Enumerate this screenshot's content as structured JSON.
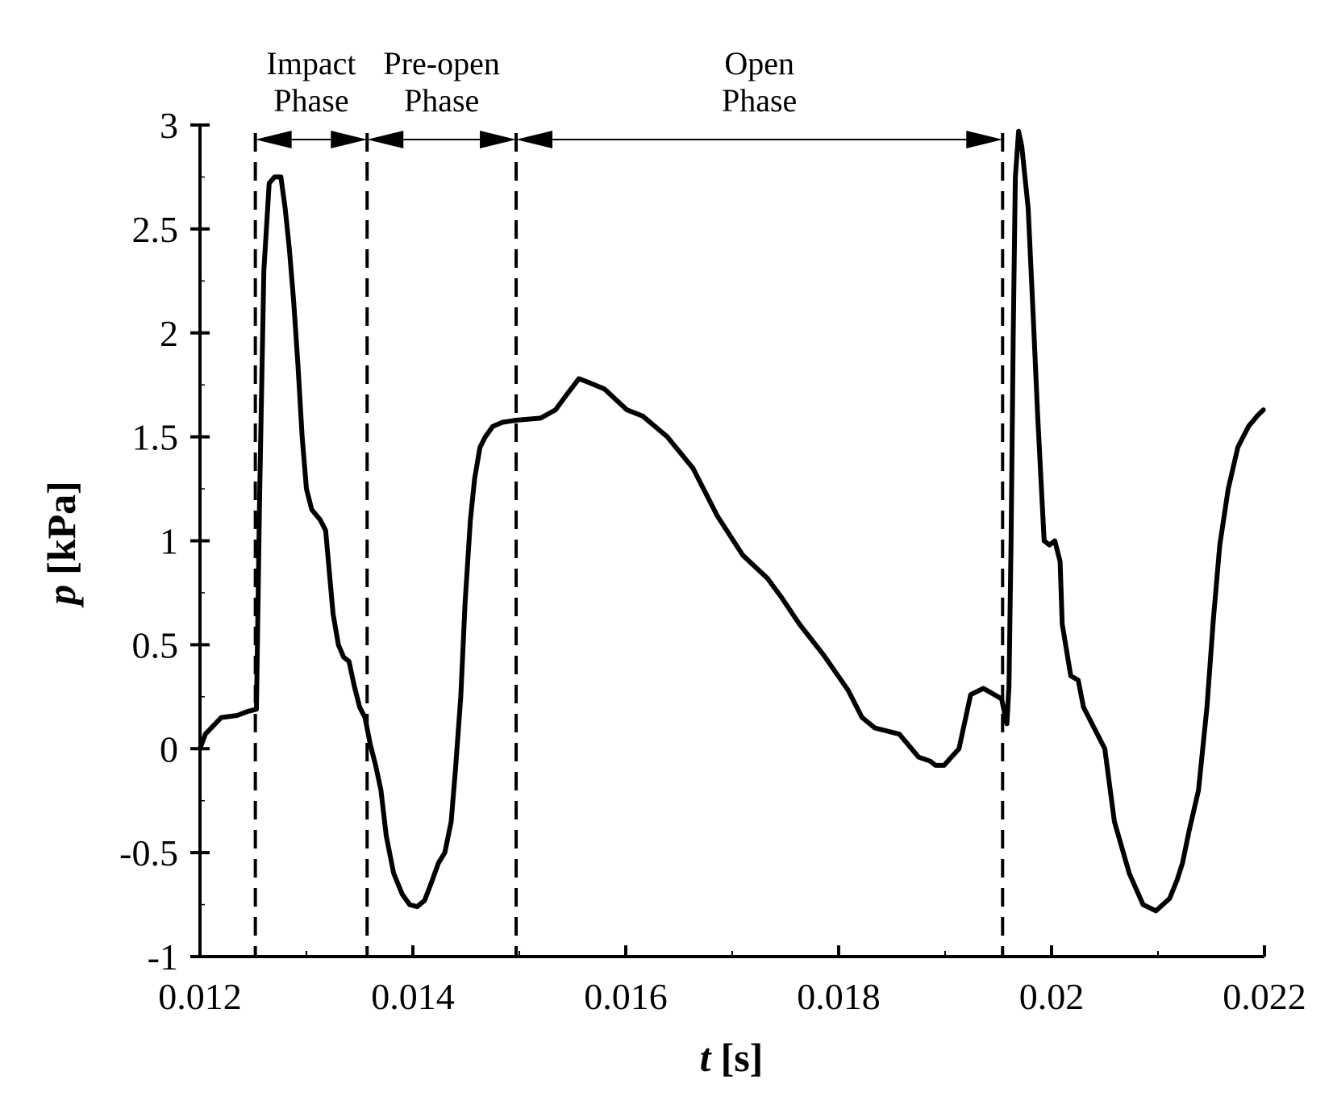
{
  "chart_data": {
    "type": "line",
    "title": "",
    "xlabel": {
      "symbol": "t",
      "unit": "[s]"
    },
    "ylabel": {
      "symbol": "p",
      "unit": "[kPa]"
    },
    "xlim": [
      0.012,
      0.022
    ],
    "ylim": [
      -1,
      3
    ],
    "x_ticks": [
      0.012,
      0.014,
      0.016,
      0.018,
      0.02,
      0.022
    ],
    "x_tick_labels": [
      "0.012",
      "0.014",
      "0.016",
      "0.018",
      "0.02",
      "0.022"
    ],
    "y_ticks": [
      -1,
      -0.5,
      0,
      0.5,
      1,
      1.5,
      2,
      2.5,
      3
    ],
    "y_tick_labels": [
      "-1",
      "-0.5",
      "0",
      "0.5",
      "1",
      "1.5",
      "2",
      "2.5",
      "3"
    ],
    "grid": false,
    "legend": "none",
    "phase_boundaries": [
      0.01252,
      0.01357,
      0.01497,
      0.01954
    ],
    "phases": [
      {
        "label_line1": "Impact",
        "label_line2": "Phase",
        "start": 0.01252,
        "end": 0.01357
      },
      {
        "label_line1": "Pre-open",
        "label_line2": "Phase",
        "start": 0.01357,
        "end": 0.01497
      },
      {
        "label_line1": "Open",
        "label_line2": "Phase",
        "start": 0.01497,
        "end": 0.01954
      }
    ],
    "series": [
      {
        "x": [
          0.012,
          0.01205,
          0.0122,
          0.01235,
          0.01245,
          0.01253,
          0.01256,
          0.0126,
          0.01265,
          0.0127,
          0.01273,
          0.01276,
          0.0128,
          0.01284,
          0.01288,
          0.01292,
          0.01296,
          0.013,
          0.01305,
          0.01313,
          0.01318,
          0.01325,
          0.0133,
          0.01335,
          0.0134,
          0.01345,
          0.0135,
          0.01355,
          0.0136,
          0.01365,
          0.0137,
          0.01375,
          0.01382,
          0.0139,
          0.01397,
          0.01404,
          0.01411,
          0.01417,
          0.01424,
          0.0143,
          0.01436,
          0.0144,
          0.01445,
          0.01449,
          0.01454,
          0.01458,
          0.01463,
          0.01468,
          0.01475,
          0.01484,
          0.01497,
          0.0152,
          0.01534,
          0.01544,
          0.01556,
          0.01566,
          0.0158,
          0.01601,
          0.01616,
          0.01639,
          0.01663,
          0.01686,
          0.0171,
          0.01733,
          0.01746,
          0.01763,
          0.01786,
          0.01809,
          0.01822,
          0.01834,
          0.01857,
          0.01875,
          0.01886,
          0.01891,
          0.01899,
          0.01913,
          0.01924,
          0.01936,
          0.01953,
          0.01958,
          0.0196,
          0.01962,
          0.01964,
          0.01966,
          0.01969,
          0.01972,
          0.01978,
          0.01983,
          0.01987,
          0.01993,
          0.01998,
          0.02003,
          0.02008,
          0.0201,
          0.02018,
          0.02025,
          0.0203,
          0.0205,
          0.02059,
          0.02073,
          0.02086,
          0.02098,
          0.02111,
          0.02118,
          0.02123,
          0.02129,
          0.02138,
          0.02146,
          0.02152,
          0.02158,
          0.02166,
          0.02175,
          0.02185,
          0.02193,
          0.02199
        ],
        "y": [
          0.0,
          0.07,
          0.15,
          0.16,
          0.18,
          0.19,
          1.2,
          2.3,
          2.72,
          2.75,
          2.75,
          2.75,
          2.6,
          2.4,
          2.15,
          1.85,
          1.5,
          1.25,
          1.15,
          1.1,
          1.05,
          0.65,
          0.5,
          0.44,
          0.42,
          0.3,
          0.2,
          0.15,
          0.02,
          -0.08,
          -0.2,
          -0.42,
          -0.6,
          -0.7,
          -0.75,
          -0.76,
          -0.73,
          -0.65,
          -0.55,
          -0.5,
          -0.35,
          -0.1,
          0.25,
          0.7,
          1.1,
          1.3,
          1.45,
          1.5,
          1.55,
          1.57,
          1.58,
          1.59,
          1.63,
          1.7,
          1.78,
          1.76,
          1.73,
          1.63,
          1.6,
          1.5,
          1.35,
          1.12,
          0.93,
          0.82,
          0.73,
          0.6,
          0.45,
          0.28,
          0.15,
          0.1,
          0.07,
          -0.04,
          -0.06,
          -0.08,
          -0.08,
          0.0,
          0.26,
          0.29,
          0.24,
          0.12,
          0.3,
          1.0,
          2.0,
          2.75,
          2.97,
          2.9,
          2.6,
          2.05,
          1.6,
          1.0,
          0.98,
          1.0,
          0.9,
          0.6,
          0.35,
          0.33,
          0.2,
          0.0,
          -0.35,
          -0.6,
          -0.75,
          -0.78,
          -0.72,
          -0.63,
          -0.55,
          -0.4,
          -0.2,
          0.2,
          0.62,
          0.98,
          1.25,
          1.45,
          1.55,
          1.6,
          1.63
        ]
      }
    ]
  }
}
